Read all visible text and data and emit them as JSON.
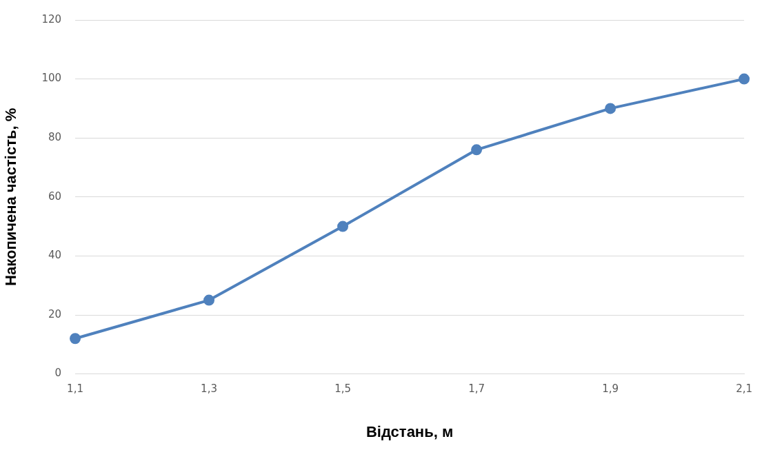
{
  "chart_data": {
    "type": "line",
    "xlabel": "Відстань, м",
    "ylabel": "Накопичена частість, %",
    "categories": [
      "1,1",
      "1,3",
      "1,5",
      "1,7",
      "1,9",
      "2,1"
    ],
    "series": [
      {
        "color": "#4f81bd",
        "values": [
          12,
          25,
          50,
          76,
          90,
          100
        ]
      }
    ],
    "ylim": [
      0,
      120
    ],
    "yticks": [
      0,
      20,
      40,
      60,
      80,
      100,
      120
    ],
    "grid": "y",
    "legend": false,
    "marker": "circle",
    "line_style": "solid"
  }
}
